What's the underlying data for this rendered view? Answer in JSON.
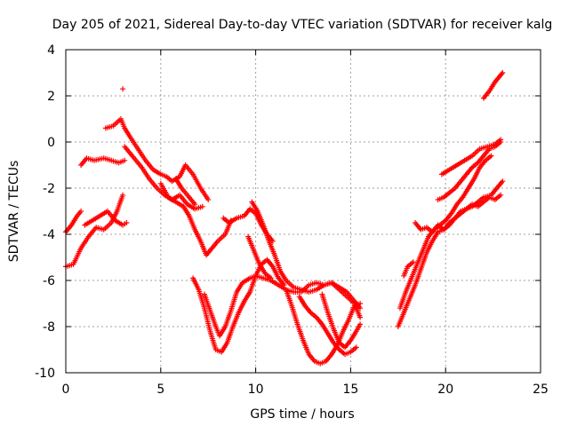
{
  "chart_data": {
    "type": "scatter",
    "title": "Day 205 of 2021, Sidereal Day-to-day VTEC variation (SDTVAR) for receiver kalg",
    "xlabel": "GPS time / hours",
    "ylabel": "SDTVAR / TECUs",
    "xlim": [
      0,
      25
    ],
    "ylim": [
      -10,
      4
    ],
    "xticks": [
      "0",
      "5",
      "10",
      "15",
      "20",
      "25"
    ],
    "yticks": [
      "-10",
      "-8",
      "-6",
      "-4",
      "-2",
      "0",
      "2",
      "4"
    ],
    "grid": true,
    "marker": "plus",
    "color": "#ff0000",
    "series": [
      {
        "points": [
          [
            0,
            -5.4
          ],
          [
            0.4,
            -5.3
          ],
          [
            0.8,
            -4.6
          ],
          [
            1.2,
            -4.1
          ],
          [
            1.6,
            -3.7
          ],
          [
            2.0,
            -3.8
          ],
          [
            2.4,
            -3.5
          ],
          [
            2.7,
            -3.0
          ],
          [
            3.0,
            -2.3
          ]
        ]
      },
      {
        "points": [
          [
            0,
            -3.9
          ],
          [
            0.3,
            -3.6
          ],
          [
            0.6,
            -3.2
          ],
          [
            0.8,
            -3.0
          ]
        ]
      },
      {
        "points": [
          [
            1.0,
            -3.6
          ],
          [
            1.4,
            -3.4
          ],
          [
            1.8,
            -3.2
          ],
          [
            2.2,
            -3.0
          ],
          [
            2.6,
            -3.4
          ],
          [
            3.0,
            -3.6
          ],
          [
            3.2,
            -3.5
          ]
        ]
      },
      {
        "points": [
          [
            0.8,
            -1.0
          ],
          [
            1.1,
            -0.7
          ],
          [
            1.5,
            -0.8
          ],
          [
            2.0,
            -0.7
          ],
          [
            2.4,
            -0.8
          ],
          [
            2.8,
            -0.9
          ],
          [
            3.1,
            -0.8
          ]
        ]
      },
      {
        "points": [
          [
            2.1,
            0.6
          ],
          [
            2.5,
            0.7
          ],
          [
            2.9,
            1.0
          ],
          [
            3.1,
            0.6
          ],
          [
            3.4,
            0.2
          ],
          [
            3.8,
            -0.3
          ],
          [
            4.2,
            -0.8
          ],
          [
            4.6,
            -1.2
          ],
          [
            5.0,
            -1.4
          ],
          [
            5.3,
            -1.5
          ],
          [
            5.6,
            -1.7
          ],
          [
            6.0,
            -1.5
          ],
          [
            6.3,
            -1.0
          ],
          [
            6.7,
            -1.4
          ],
          [
            7.1,
            -2.0
          ],
          [
            7.5,
            -2.5
          ]
        ]
      },
      {
        "points": [
          [
            3.1,
            -0.2
          ],
          [
            3.6,
            -0.7
          ],
          [
            4.0,
            -1.1
          ],
          [
            4.4,
            -1.6
          ],
          [
            4.8,
            -2.0
          ],
          [
            5.2,
            -2.3
          ],
          [
            5.6,
            -2.5
          ],
          [
            6.0,
            -2.3
          ],
          [
            6.4,
            -2.7
          ],
          [
            6.8,
            -2.9
          ],
          [
            7.2,
            -2.8
          ]
        ]
      },
      {
        "points": [
          [
            3.0,
            2.3
          ]
        ]
      },
      {
        "points": [
          [
            5.0,
            -1.8
          ],
          [
            5.4,
            -2.4
          ],
          [
            5.8,
            -2.6
          ],
          [
            6.2,
            -2.8
          ],
          [
            6.5,
            -3.2
          ],
          [
            6.8,
            -3.8
          ],
          [
            7.1,
            -4.3
          ],
          [
            7.4,
            -4.9
          ],
          [
            7.7,
            -4.6
          ],
          [
            8.0,
            -4.3
          ],
          [
            8.4,
            -4.0
          ],
          [
            8.7,
            -3.4
          ]
        ]
      },
      {
        "points": [
          [
            5.8,
            -1.6
          ],
          [
            6.1,
            -2.0
          ],
          [
            6.5,
            -2.4
          ],
          [
            6.8,
            -2.7
          ]
        ]
      },
      {
        "points": [
          [
            6.7,
            -5.9
          ],
          [
            7.0,
            -6.4
          ],
          [
            7.3,
            -7.2
          ],
          [
            7.6,
            -8.2
          ],
          [
            7.9,
            -9.0
          ],
          [
            8.2,
            -9.1
          ],
          [
            8.5,
            -8.7
          ],
          [
            8.8,
            -8.0
          ],
          [
            9.1,
            -7.4
          ],
          [
            9.4,
            -6.9
          ],
          [
            9.7,
            -6.5
          ],
          [
            10.0,
            -5.8
          ],
          [
            10.3,
            -5.3
          ],
          [
            10.6,
            -5.1
          ],
          [
            10.9,
            -5.4
          ],
          [
            11.2,
            -5.9
          ],
          [
            11.5,
            -6.2
          ]
        ]
      },
      {
        "points": [
          [
            7.3,
            -6.6
          ],
          [
            7.6,
            -7.3
          ],
          [
            7.9,
            -8.0
          ],
          [
            8.1,
            -8.4
          ],
          [
            8.4,
            -8.0
          ],
          [
            8.7,
            -7.3
          ],
          [
            9.0,
            -6.5
          ],
          [
            9.3,
            -6.1
          ],
          [
            9.7,
            -5.9
          ],
          [
            10.0,
            -5.8
          ],
          [
            10.4,
            -5.9
          ],
          [
            10.8,
            -6.0
          ],
          [
            11.2,
            -6.2
          ],
          [
            11.6,
            -6.4
          ],
          [
            12.0,
            -6.5
          ],
          [
            12.4,
            -6.5
          ],
          [
            12.8,
            -6.2
          ],
          [
            13.2,
            -6.1
          ],
          [
            13.6,
            -6.2
          ],
          [
            14.0,
            -6.1
          ],
          [
            14.4,
            -6.3
          ],
          [
            14.8,
            -6.5
          ],
          [
            15.2,
            -6.9
          ],
          [
            15.5,
            -7.2
          ]
        ]
      },
      {
        "points": [
          [
            8.3,
            -3.3
          ],
          [
            8.6,
            -3.5
          ],
          [
            9.0,
            -3.3
          ],
          [
            9.4,
            -3.2
          ],
          [
            9.7,
            -2.9
          ],
          [
            10.0,
            -3.1
          ],
          [
            10.3,
            -3.6
          ],
          [
            10.6,
            -4.0
          ],
          [
            10.9,
            -4.3
          ]
        ]
      },
      {
        "points": [
          [
            9.8,
            -2.6
          ],
          [
            10.1,
            -3.0
          ],
          [
            10.4,
            -3.6
          ],
          [
            10.7,
            -4.3
          ],
          [
            11.0,
            -4.9
          ],
          [
            11.3,
            -5.6
          ],
          [
            11.6,
            -6.0
          ],
          [
            12.0,
            -6.3
          ],
          [
            12.4,
            -6.4
          ],
          [
            12.8,
            -6.5
          ],
          [
            13.2,
            -6.4
          ],
          [
            13.6,
            -6.2
          ],
          [
            14.0,
            -6.1
          ]
        ]
      },
      {
        "points": [
          [
            9.6,
            -4.1
          ],
          [
            9.9,
            -4.7
          ],
          [
            10.2,
            -5.3
          ],
          [
            10.5,
            -5.7
          ],
          [
            10.8,
            -5.9
          ]
        ]
      },
      {
        "points": [
          [
            11.6,
            -6.4
          ],
          [
            11.9,
            -7.1
          ],
          [
            12.2,
            -7.9
          ],
          [
            12.5,
            -8.6
          ],
          [
            12.8,
            -9.2
          ],
          [
            13.1,
            -9.5
          ],
          [
            13.4,
            -9.6
          ],
          [
            13.7,
            -9.5
          ],
          [
            14.0,
            -9.2
          ],
          [
            14.3,
            -8.8
          ],
          [
            14.6,
            -8.2
          ],
          [
            14.9,
            -7.7
          ],
          [
            15.2,
            -7.1
          ],
          [
            15.5,
            -7.0
          ]
        ]
      },
      {
        "points": [
          [
            12.3,
            -6.7
          ],
          [
            12.6,
            -7.1
          ],
          [
            12.9,
            -7.4
          ],
          [
            13.2,
            -7.6
          ],
          [
            13.5,
            -7.9
          ],
          [
            13.8,
            -8.3
          ],
          [
            14.1,
            -8.7
          ],
          [
            14.4,
            -9.0
          ],
          [
            14.7,
            -9.2
          ],
          [
            15.0,
            -9.1
          ],
          [
            15.3,
            -8.9
          ]
        ]
      },
      {
        "points": [
          [
            13.5,
            -6.6
          ],
          [
            13.8,
            -7.4
          ],
          [
            14.1,
            -8.1
          ],
          [
            14.4,
            -8.7
          ],
          [
            14.7,
            -8.9
          ],
          [
            15.0,
            -8.6
          ],
          [
            15.3,
            -8.2
          ],
          [
            15.5,
            -7.9
          ]
        ]
      },
      {
        "points": [
          [
            14.0,
            -6.1
          ],
          [
            14.4,
            -6.4
          ],
          [
            14.8,
            -6.7
          ],
          [
            15.2,
            -7.0
          ],
          [
            15.5,
            -7.6
          ]
        ]
      },
      {
        "points": [
          [
            17.5,
            -8.0
          ],
          [
            17.8,
            -7.4
          ],
          [
            18.1,
            -6.8
          ],
          [
            18.4,
            -6.2
          ],
          [
            18.7,
            -5.5
          ],
          [
            19.0,
            -4.8
          ],
          [
            19.3,
            -4.3
          ],
          [
            19.6,
            -3.9
          ],
          [
            19.9,
            -3.8
          ],
          [
            20.2,
            -3.6
          ],
          [
            20.5,
            -3.3
          ],
          [
            20.8,
            -3.1
          ],
          [
            21.1,
            -2.9
          ],
          [
            21.4,
            -2.8
          ],
          [
            21.7,
            -2.6
          ],
          [
            22.0,
            -2.4
          ],
          [
            22.4,
            -2.3
          ],
          [
            22.7,
            -2.0
          ],
          [
            23.0,
            -1.7
          ]
        ]
      },
      {
        "points": [
          [
            17.6,
            -7.2
          ],
          [
            17.9,
            -6.5
          ],
          [
            18.2,
            -5.9
          ],
          [
            18.5,
            -5.3
          ],
          [
            18.8,
            -4.7
          ],
          [
            19.1,
            -4.1
          ],
          [
            19.4,
            -3.8
          ],
          [
            19.7,
            -3.6
          ],
          [
            20.0,
            -3.4
          ],
          [
            20.3,
            -3.1
          ],
          [
            20.6,
            -2.7
          ],
          [
            20.9,
            -2.4
          ],
          [
            21.2,
            -2.0
          ],
          [
            21.5,
            -1.6
          ],
          [
            21.8,
            -1.1
          ],
          [
            22.1,
            -0.8
          ],
          [
            22.4,
            -0.6
          ]
        ]
      },
      {
        "points": [
          [
            17.8,
            -5.8
          ],
          [
            18.0,
            -5.4
          ],
          [
            18.3,
            -5.2
          ]
        ]
      },
      {
        "points": [
          [
            18.4,
            -3.5
          ],
          [
            18.7,
            -3.8
          ],
          [
            19.0,
            -3.7
          ],
          [
            19.3,
            -3.9
          ],
          [
            19.6,
            -3.6
          ],
          [
            19.9,
            -3.8
          ],
          [
            20.2,
            -3.5
          ],
          [
            20.5,
            -3.3
          ],
          [
            20.8,
            -3.0
          ],
          [
            21.1,
            -2.9
          ],
          [
            21.4,
            -2.7
          ],
          [
            21.7,
            -2.8
          ],
          [
            22.0,
            -2.6
          ],
          [
            22.3,
            -2.4
          ],
          [
            22.6,
            -2.5
          ],
          [
            22.9,
            -2.3
          ]
        ]
      },
      {
        "points": [
          [
            19.6,
            -2.5
          ],
          [
            19.9,
            -2.4
          ],
          [
            20.2,
            -2.2
          ],
          [
            20.5,
            -2.0
          ],
          [
            20.8,
            -1.7
          ],
          [
            21.1,
            -1.4
          ],
          [
            21.4,
            -1.1
          ],
          [
            21.7,
            -0.9
          ],
          [
            22.0,
            -0.6
          ],
          [
            22.3,
            -0.3
          ],
          [
            22.6,
            -0.2
          ],
          [
            22.9,
            0.0
          ]
        ]
      },
      {
        "points": [
          [
            19.8,
            -1.4
          ],
          [
            20.2,
            -1.2
          ],
          [
            20.6,
            -1.0
          ],
          [
            21.0,
            -0.8
          ],
          [
            21.4,
            -0.6
          ],
          [
            21.8,
            -0.3
          ],
          [
            22.2,
            -0.2
          ],
          [
            22.6,
            -0.1
          ],
          [
            22.9,
            0.1
          ]
        ]
      },
      {
        "points": [
          [
            22.0,
            1.9
          ],
          [
            22.3,
            2.2
          ],
          [
            22.6,
            2.6
          ],
          [
            22.9,
            2.9
          ],
          [
            23.0,
            3.0
          ]
        ]
      }
    ]
  }
}
